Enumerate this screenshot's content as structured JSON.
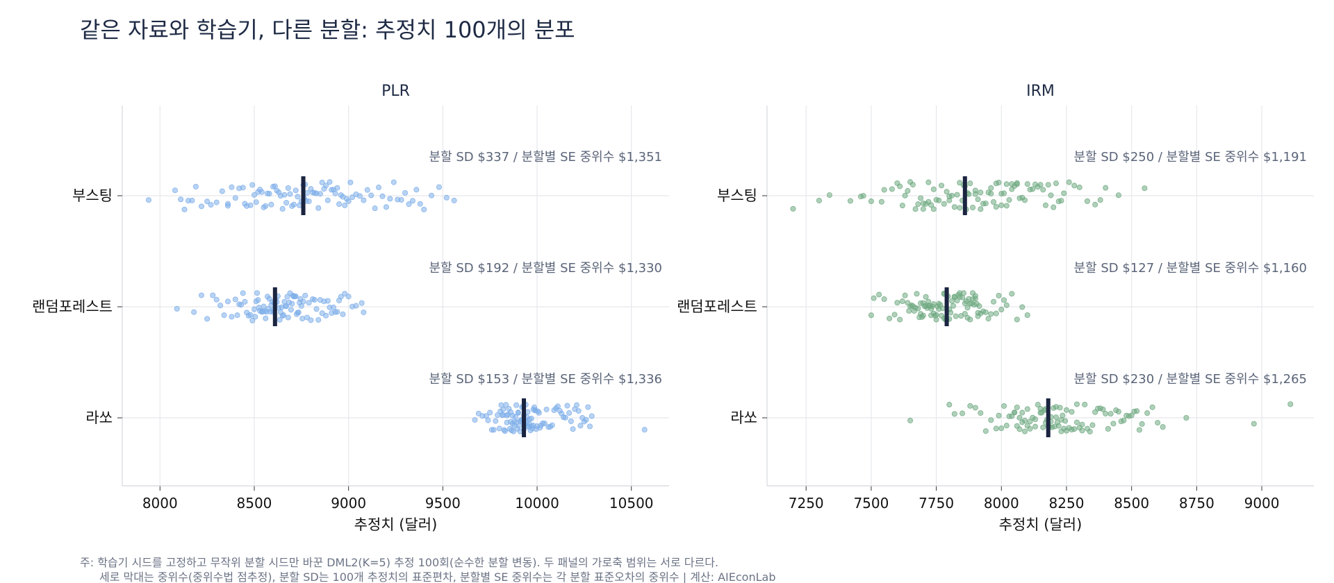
{
  "title": "같은 자료와 학습기, 다른 분할: 추정치 100개의 분포",
  "footnote": {
    "line1": "주: 학습기 시드를 고정하고 무작위 분할 시드만 바꾼 DML2(K=5) 추정 100회(순수한 분할 변동). 두 패널의 가로축 범위는 서로 다르다.",
    "line2": "세로 막대는 중위수(중위수법 점추정), 분할 SD는 100개 추정치의 표준편차, 분할별 SE 중위수는 각 분할 표준오차의 중위수  |  계산: AIEconLab"
  },
  "chart_data": [
    {
      "type": "scatter",
      "panel_title": "PLR",
      "xlabel": "추정치 (달러)",
      "xlim": [
        7800,
        10700
      ],
      "xticks": [
        8000,
        8500,
        9000,
        9500,
        10000,
        10500
      ],
      "color": "#7eaee9",
      "median_color": "#1b2540",
      "grid": true,
      "categories": [
        {
          "name": "부스팅",
          "median": 8760,
          "annotation": "분할 SD $337 / 분할별 SE 중위수 $1,351",
          "points": [
            7940,
            8080,
            8110,
            8130,
            8150,
            8170,
            8190,
            8220,
            8250,
            8270,
            8300,
            8330,
            8360,
            8380,
            8400,
            8420,
            8440,
            8450,
            8460,
            8480,
            8490,
            8500,
            8510,
            8520,
            8530,
            8540,
            8550,
            8560,
            8570,
            8580,
            8590,
            8600,
            8610,
            8620,
            8630,
            8640,
            8650,
            8660,
            8670,
            8680,
            8690,
            8700,
            8710,
            8720,
            8730,
            8740,
            8750,
            8760,
            8765,
            8770,
            8775,
            8780,
            8790,
            8800,
            8810,
            8820,
            8830,
            8840,
            8850,
            8860,
            8870,
            8880,
            8890,
            8900,
            8910,
            8920,
            8930,
            8940,
            8950,
            8960,
            8970,
            8980,
            8990,
            9000,
            9010,
            9020,
            9040,
            9060,
            9080,
            9100,
            9120,
            9140,
            9160,
            9180,
            9200,
            9220,
            9240,
            9260,
            9280,
            9300,
            9320,
            9340,
            9360,
            9380,
            9400,
            9440,
            9480,
            9520,
            9560,
            8360
          ]
        },
        {
          "name": "랜덤포레스트",
          "median": 8610,
          "annotation": "분할 SD $192 / 분할별 SE 중위수 $1,330",
          "points": [
            8090,
            8180,
            8220,
            8250,
            8280,
            8300,
            8320,
            8340,
            8360,
            8380,
            8400,
            8410,
            8420,
            8430,
            8440,
            8450,
            8460,
            8470,
            8480,
            8490,
            8500,
            8505,
            8510,
            8515,
            8520,
            8525,
            8530,
            8540,
            8545,
            8550,
            8555,
            8560,
            8565,
            8570,
            8575,
            8580,
            8585,
            8590,
            8595,
            8600,
            8605,
            8610,
            8615,
            8620,
            8625,
            8630,
            8635,
            8640,
            8645,
            8650,
            8655,
            8660,
            8665,
            8670,
            8675,
            8680,
            8685,
            8690,
            8695,
            8700,
            8705,
            8710,
            8715,
            8720,
            8725,
            8730,
            8735,
            8740,
            8745,
            8750,
            8755,
            8760,
            8770,
            8780,
            8790,
            8800,
            8810,
            8820,
            8830,
            8840,
            8850,
            8860,
            8870,
            8880,
            8890,
            8900,
            8910,
            8920,
            8930,
            8940,
            8950,
            8960,
            8970,
            8980,
            9000,
            9020,
            9040,
            9070,
            9080,
            8600
          ]
        },
        {
          "name": "라쏘",
          "median": 9930,
          "annotation": "분할 SD $153 / 분할별 SE 중위수 $1,336",
          "points": [
            9670,
            9690,
            9710,
            9730,
            9740,
            9750,
            9760,
            9770,
            9780,
            9790,
            9800,
            9805,
            9810,
            9815,
            9820,
            9825,
            9830,
            9835,
            9840,
            9845,
            9850,
            9855,
            9860,
            9865,
            9870,
            9875,
            9880,
            9885,
            9890,
            9895,
            9900,
            9905,
            9910,
            9915,
            9920,
            9925,
            9930,
            9935,
            9940,
            9945,
            9950,
            9955,
            9960,
            9965,
            9970,
            9975,
            9980,
            9985,
            9990,
            9995,
            10000,
            10005,
            10010,
            10015,
            10020,
            10030,
            10040,
            10050,
            10060,
            10070,
            10080,
            10090,
            10100,
            10110,
            10120,
            10130,
            10140,
            10150,
            10160,
            10170,
            10180,
            10190,
            10200,
            10210,
            10220,
            10230,
            10240,
            10250,
            10260,
            10270,
            10280,
            10290,
            9860,
            9880,
            9900,
            9920,
            9940,
            9960,
            9980,
            9870,
            9890,
            9910,
            9950,
            9970,
            9990,
            9820,
            9840,
            10570,
            9930,
            9945
          ]
        }
      ]
    },
    {
      "type": "scatter",
      "panel_title": "IRM",
      "xlabel": "추정치 (달러)",
      "xlim": [
        7100,
        9200
      ],
      "xticks": [
        7250,
        7500,
        7750,
        8000,
        8250,
        8500,
        8750,
        9000
      ],
      "color": "#6faa82",
      "median_color": "#1b2540",
      "grid": true,
      "categories": [
        {
          "name": "부스팅",
          "median": 7860,
          "annotation": "분할 SD $250 / 분할별 SE 중위수 $1,191",
          "points": [
            7200,
            7300,
            7340,
            7420,
            7460,
            7470,
            7500,
            7540,
            7550,
            7580,
            7600,
            7610,
            7620,
            7630,
            7640,
            7650,
            7660,
            7670,
            7680,
            7690,
            7700,
            7710,
            7720,
            7730,
            7740,
            7750,
            7760,
            7770,
            7780,
            7790,
            7800,
            7810,
            7820,
            7830,
            7840,
            7850,
            7855,
            7860,
            7865,
            7870,
            7875,
            7880,
            7890,
            7900,
            7910,
            7920,
            7930,
            7940,
            7950,
            7960,
            7970,
            7980,
            7990,
            8000,
            8010,
            8020,
            8030,
            8040,
            8050,
            8060,
            8070,
            8080,
            8090,
            8100,
            8110,
            8120,
            8130,
            8140,
            8150,
            8160,
            8170,
            8180,
            8190,
            8200,
            8210,
            8220,
            8230,
            8240,
            8260,
            8280,
            8300,
            8330,
            8360,
            8380,
            8400,
            8450,
            8550,
            7700,
            7720,
            7740,
            7900,
            7920,
            7960,
            8000,
            8040,
            8060,
            7980,
            8020,
            7800,
            7840
          ]
        },
        {
          "name": "랜덤포레스트",
          "median": 7790,
          "annotation": "분할 SD $127 / 분할별 SE 중위수 $1,160",
          "points": [
            7500,
            7510,
            7530,
            7550,
            7570,
            7590,
            7600,
            7610,
            7620,
            7630,
            7640,
            7645,
            7650,
            7655,
            7660,
            7665,
            7670,
            7675,
            7680,
            7685,
            7690,
            7695,
            7700,
            7705,
            7710,
            7715,
            7720,
            7725,
            7730,
            7735,
            7740,
            7745,
            7750,
            7755,
            7760,
            7765,
            7770,
            7775,
            7780,
            7785,
            7790,
            7795,
            7800,
            7805,
            7810,
            7815,
            7820,
            7825,
            7830,
            7835,
            7840,
            7845,
            7850,
            7855,
            7860,
            7865,
            7870,
            7875,
            7880,
            7885,
            7890,
            7895,
            7900,
            7905,
            7910,
            7915,
            7920,
            7930,
            7940,
            7950,
            7960,
            7970,
            7980,
            7990,
            8000,
            8010,
            8020,
            8040,
            8060,
            8080,
            8100,
            7700,
            7720,
            7740,
            7760,
            7780,
            7800,
            7820,
            7840,
            7860,
            7880,
            7900,
            7690,
            7710,
            7730,
            7750,
            7870,
            7890,
            7910,
            7780
          ]
        },
        {
          "name": "라쏘",
          "median": 8180,
          "annotation": "분할 SD $230 / 분할별 SE 중위수 $1,265",
          "points": [
            7650,
            7800,
            7820,
            7850,
            7880,
            7900,
            7920,
            7940,
            7960,
            7980,
            7990,
            8000,
            8010,
            8020,
            8030,
            8040,
            8050,
            8060,
            8070,
            8080,
            8090,
            8100,
            8110,
            8120,
            8130,
            8140,
            8150,
            8155,
            8160,
            8165,
            8170,
            8175,
            8180,
            8185,
            8190,
            8195,
            8200,
            8205,
            8210,
            8215,
            8220,
            8225,
            8230,
            8235,
            8240,
            8245,
            8250,
            8260,
            8270,
            8280,
            8290,
            8300,
            8310,
            8320,
            8330,
            8340,
            8350,
            8360,
            8370,
            8380,
            8390,
            8400,
            8410,
            8420,
            8430,
            8440,
            8450,
            8460,
            8470,
            8480,
            8490,
            8500,
            8510,
            8520,
            8530,
            8540,
            8560,
            8580,
            8600,
            8620,
            8710,
            8970,
            9110,
            8050,
            8070,
            8090,
            8110,
            8130,
            8150,
            8170,
            8190,
            8210,
            8230,
            8250,
            8270,
            8290,
            8310,
            8060,
            8080,
            8100
          ]
        }
      ]
    }
  ]
}
